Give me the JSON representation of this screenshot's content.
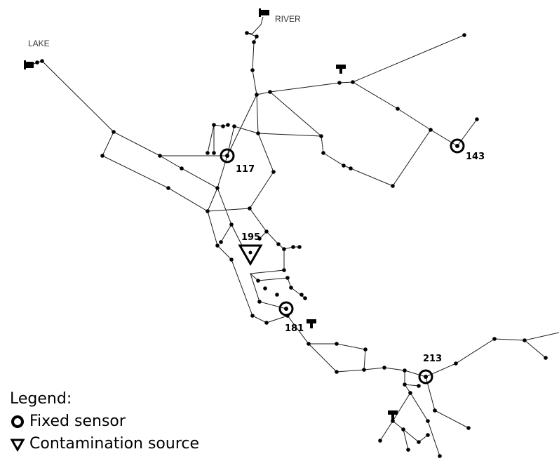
{
  "map": {
    "sources": [
      {
        "name": "RIVER"
      },
      {
        "name": "LAKE"
      }
    ],
    "sensors": [
      {
        "id": "117"
      },
      {
        "id": "143"
      },
      {
        "id": "181"
      },
      {
        "id": "213"
      }
    ],
    "contamination": {
      "id": "195"
    },
    "colors": {
      "pipe": "#1a1a1a",
      "node": "#000000",
      "label": "#333333"
    }
  },
  "legend": {
    "title": "Legend:",
    "fixed_sensor": "Fixed sensor",
    "contamination_source": "Contamination source"
  }
}
